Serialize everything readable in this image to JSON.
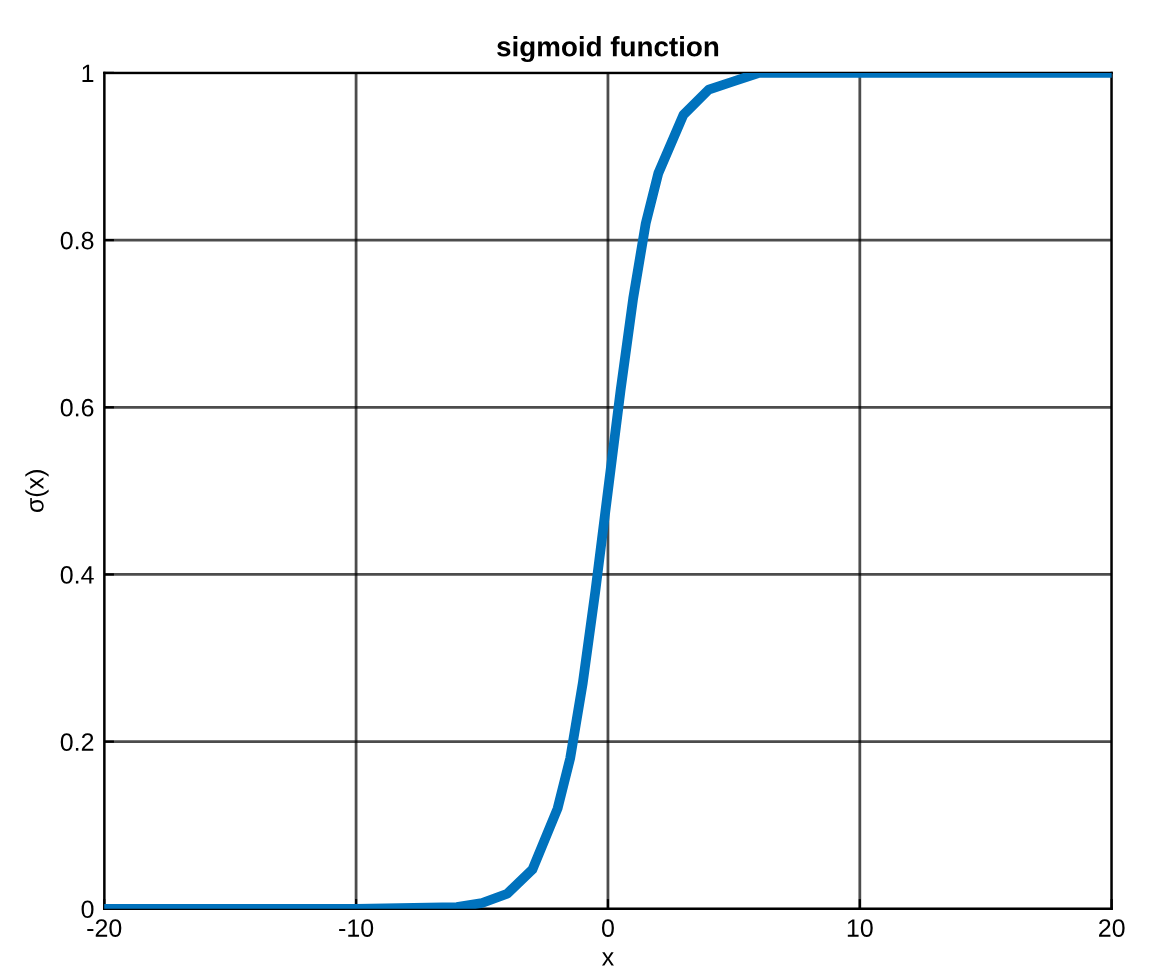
{
  "chart_data": {
    "type": "line",
    "title": "sigmoid function",
    "xlabel": "x",
    "ylabel": "σ(x)",
    "x": [
      -20,
      -10,
      -6,
      -5,
      -4,
      -3,
      -2,
      -1.5,
      -1,
      -0.5,
      0,
      0.5,
      1,
      1.5,
      2,
      3,
      4,
      5,
      6,
      10,
      20
    ],
    "series": [
      {
        "color": "#0072bd",
        "values": [
          0,
          0,
          0.002,
          0.007,
          0.018,
          0.047,
          0.12,
          0.18,
          0.27,
          0.38,
          0.5,
          0.62,
          0.73,
          0.82,
          0.88,
          0.95,
          0.98,
          0.99,
          1,
          1,
          1
        ]
      }
    ],
    "xlim": [
      -20,
      20
    ],
    "xticks": [
      -20,
      -10,
      0,
      10,
      20
    ],
    "ylim": [
      0,
      1
    ],
    "yticks": [
      0,
      0.2,
      0.4,
      0.6,
      0.8,
      1
    ],
    "grid": true,
    "marker": "none",
    "line_style": "solid"
  }
}
